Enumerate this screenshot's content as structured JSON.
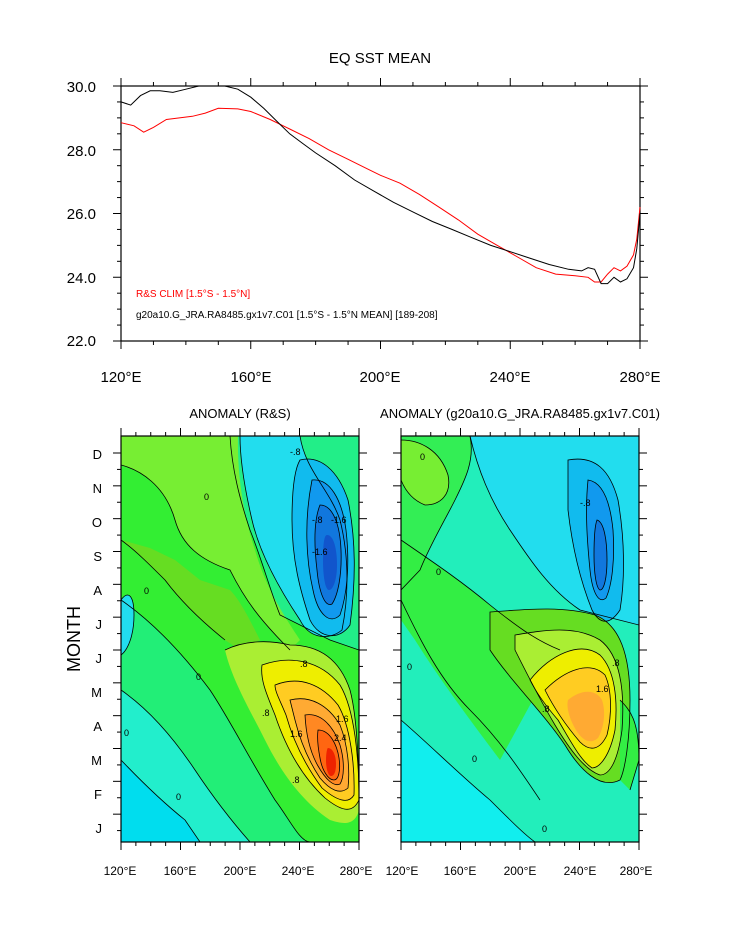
{
  "chart_data": [
    {
      "type": "line",
      "title": "EQ SST MEAN",
      "xlabel": "",
      "ylabel": "",
      "xlim": [
        120,
        280
      ],
      "ylim": [
        22,
        30
      ],
      "x_ticks": [
        120,
        160,
        200,
        240,
        280
      ],
      "x_tick_labels": [
        "120°E",
        "160°E",
        "200°E",
        "240°E",
        "280°E"
      ],
      "y_ticks": [
        22,
        24,
        26,
        28,
        30
      ],
      "y_tick_labels": [
        "22.0",
        "24.0",
        "26.0",
        "28.0",
        "30.0"
      ],
      "legend_placement": "bottom-left",
      "series": [
        {
          "name": "R&S CLIM [1.5°S - 1.5°N]",
          "color": "#ff0000",
          "x": [
            120,
            124,
            127,
            130,
            134,
            138,
            142,
            146,
            150,
            156,
            160,
            166,
            172,
            178,
            184,
            190,
            196,
            200,
            206,
            212,
            218,
            224,
            230,
            236,
            242,
            248,
            254,
            260,
            264,
            266,
            268,
            270,
            272,
            274,
            276,
            278,
            279,
            280
          ],
          "values": [
            28.85,
            28.75,
            28.55,
            28.7,
            28.95,
            29.0,
            29.05,
            29.15,
            29.3,
            29.28,
            29.2,
            28.95,
            28.65,
            28.35,
            28.0,
            27.7,
            27.4,
            27.2,
            26.95,
            26.6,
            26.2,
            25.8,
            25.35,
            25.0,
            24.65,
            24.3,
            24.1,
            24.05,
            24.0,
            23.85,
            23.85,
            24.1,
            24.3,
            24.2,
            24.35,
            24.7,
            25.2,
            26.2
          ]
        },
        {
          "name": "g20a10.G_JRA.RA8485.gx1v7.C01 [1.5°S - 1.5°N MEAN] [189-208]",
          "color": "#000000",
          "x": [
            120,
            123,
            126,
            129,
            132,
            136,
            140,
            144,
            148,
            152,
            156,
            160,
            164,
            168,
            172,
            176,
            180,
            186,
            192,
            198,
            204,
            210,
            216,
            222,
            228,
            234,
            240,
            246,
            252,
            258,
            262,
            264,
            266,
            268,
            270,
            272,
            274,
            276,
            278,
            279,
            280
          ],
          "values": [
            29.5,
            29.4,
            29.7,
            29.85,
            29.85,
            29.8,
            29.9,
            30.0,
            30.05,
            30.0,
            29.9,
            29.65,
            29.3,
            28.9,
            28.5,
            28.2,
            27.9,
            27.5,
            27.05,
            26.7,
            26.35,
            26.05,
            25.75,
            25.5,
            25.25,
            25.0,
            24.8,
            24.6,
            24.4,
            24.25,
            24.2,
            24.3,
            24.25,
            23.8,
            23.8,
            24.0,
            23.85,
            23.95,
            24.3,
            24.9,
            26.0
          ]
        }
      ]
    },
    {
      "type": "heatmap",
      "title": "ANOMALY (R&S)",
      "ylabel": "MONTH",
      "x_tick_labels": [
        "120°E",
        "160°E",
        "200°E",
        "240°E",
        "280°E"
      ],
      "y_tick_labels": [
        "J",
        "F",
        "M",
        "A",
        "M",
        "J",
        "J",
        "A",
        "S",
        "O",
        "N",
        "D"
      ],
      "contour_labels": [
        "-.8",
        "-.8",
        "-1.6",
        "-1.6",
        "0",
        "0",
        "0",
        "0",
        "0",
        ".8",
        ".8",
        ".8",
        "1.6",
        "1.6",
        "2.4"
      ]
    },
    {
      "type": "heatmap",
      "title": "ANOMALY (g20a10.G_JRA.RA8485.gx1v7.C01)",
      "x_tick_labels": [
        "120°E",
        "160°E",
        "200°E",
        "240°E",
        "280°E"
      ],
      "y_tick_labels": [
        "J",
        "F",
        "M",
        "A",
        "M",
        "J",
        "J",
        "A",
        "S",
        "O",
        "N",
        "D"
      ],
      "contour_labels": [
        "-.8",
        "0",
        "0",
        "0",
        "0",
        "0",
        ".8",
        ".8",
        "1.6"
      ]
    }
  ]
}
